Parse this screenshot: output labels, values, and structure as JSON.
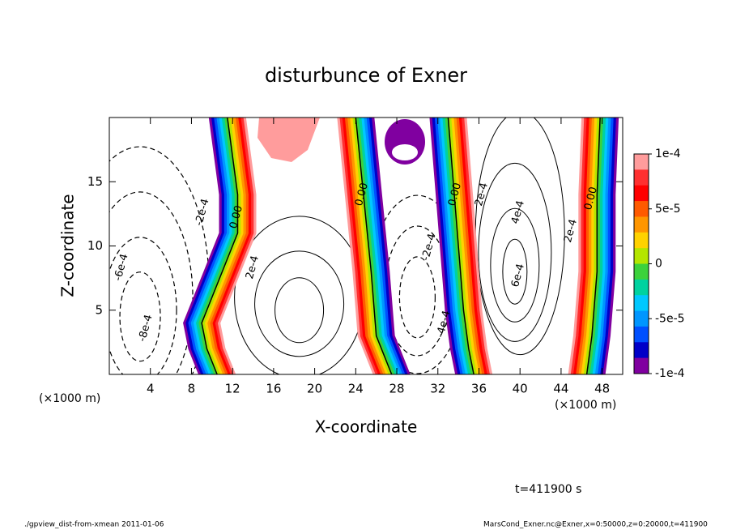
{
  "chart_data": {
    "type": "contour",
    "title": "disturbunce of Exner",
    "x_label": "X-coordinate",
    "y_label": "Z-coordinate",
    "x_unit": "(×1000 m)",
    "xlim": [
      0,
      50
    ],
    "xticks": [
      4,
      8,
      12,
      16,
      20,
      24,
      28,
      32,
      36,
      40,
      44,
      48
    ],
    "ylim": [
      0,
      20
    ],
    "yticks": [
      5,
      10,
      15
    ],
    "colorbar": {
      "lim": [
        -0.0001,
        0.0001
      ],
      "ticks": [
        {
          "value": 0.0001,
          "label": "1e-4"
        },
        {
          "value": 5e-05,
          "label": "5e-5"
        },
        0,
        {
          "value": -5e-05,
          "label": "-5e-5"
        },
        {
          "value": -0.0001,
          "label": "-1e-4"
        }
      ],
      "colors": [
        "#ff9c9c",
        "#ff3030",
        "#ff0000",
        "#ff5a00",
        "#ff9600",
        "#ffd200",
        "#b4e600",
        "#3cd23c",
        "#00d2a0",
        "#00c8ff",
        "#0096ff",
        "#0050ff",
        "#0000c8",
        "#8000a0"
      ]
    },
    "contour_labels": [
      "-2e-4",
      "0.00",
      "2e-4",
      "-6e-4",
      "-8e-4",
      "0.00",
      "-2e-4",
      "-4e-4",
      "0.00",
      "2e-4",
      "4e-4",
      "6e-4",
      "2e-4",
      "0.00"
    ],
    "time_label": "t=411900 s",
    "footer_left": "./gpview_dist-from-xmean  2011-01-06",
    "footer_right": "MarsCond_Exner.nc@Exner,x=0:50000,z=0:20000,t=411900"
  }
}
